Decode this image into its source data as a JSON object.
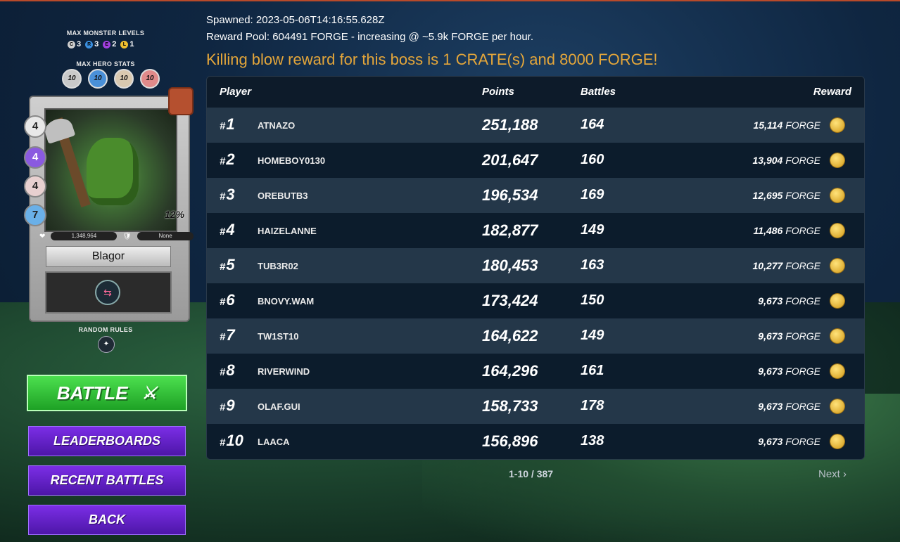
{
  "header": {
    "spawned": "Spawned: 2023-05-06T14:16:55.628Z",
    "reward_pool": "Reward Pool: 604491 FORGE - increasing @ ~5.9k FORGE per hour.",
    "killing_blow": "Killing blow reward for this boss is 1 CRATE(s) and 8000 FORGE!"
  },
  "left": {
    "max_monster_levels_label": "MAX MONSTER LEVELS",
    "monster_levels": [
      {
        "letter": "C",
        "value": "3",
        "color": "#cfcfcf"
      },
      {
        "letter": "R",
        "value": "3",
        "color": "#3a8fe0"
      },
      {
        "letter": "E",
        "value": "2",
        "color": "#a040e0"
      },
      {
        "letter": "L",
        "value": "1",
        "color": "#f0c030"
      }
    ],
    "max_hero_stats_label": "MAX HERO STATS",
    "hero_stats": [
      "10",
      "10",
      "10",
      "10"
    ],
    "card": {
      "stats": [
        "4",
        "4",
        "4",
        "7"
      ],
      "crit_pct": "12%",
      "health": "1,348,964",
      "armor": "None",
      "name": "Blagor"
    },
    "random_rules_label": "RANDOM RULES",
    "battle_label": "BATTLE",
    "leaderboards_label": "LEADERBOARDS",
    "recent_battles_label": "RECENT BATTLES",
    "back_label": "BACK"
  },
  "table": {
    "headers": {
      "player": "Player",
      "points": "Points",
      "battles": "Battles",
      "reward": "Reward"
    },
    "rows": [
      {
        "rank": "1",
        "player": "ATNAZO",
        "points": "251,188",
        "battles": "164",
        "reward": "15,114",
        "unit": "FORGE"
      },
      {
        "rank": "2",
        "player": "HOMEBOY0130",
        "points": "201,647",
        "battles": "160",
        "reward": "13,904",
        "unit": "FORGE"
      },
      {
        "rank": "3",
        "player": "OREBUTB3",
        "points": "196,534",
        "battles": "169",
        "reward": "12,695",
        "unit": "FORGE"
      },
      {
        "rank": "4",
        "player": "HAIZELANNE",
        "points": "182,877",
        "battles": "149",
        "reward": "11,486",
        "unit": "FORGE"
      },
      {
        "rank": "5",
        "player": "TUB3R02",
        "points": "180,453",
        "battles": "163",
        "reward": "10,277",
        "unit": "FORGE"
      },
      {
        "rank": "6",
        "player": "BNOVY.WAM",
        "points": "173,424",
        "battles": "150",
        "reward": "9,673",
        "unit": "FORGE"
      },
      {
        "rank": "7",
        "player": "TW1ST10",
        "points": "164,622",
        "battles": "149",
        "reward": "9,673",
        "unit": "FORGE"
      },
      {
        "rank": "8",
        "player": "RIVERWIND",
        "points": "164,296",
        "battles": "161",
        "reward": "9,673",
        "unit": "FORGE"
      },
      {
        "rank": "9",
        "player": "OLAF.GUI",
        "points": "158,733",
        "battles": "178",
        "reward": "9,673",
        "unit": "FORGE"
      },
      {
        "rank": "10",
        "player": "LAACA",
        "points": "156,896",
        "battles": "138",
        "reward": "9,673",
        "unit": "FORGE"
      }
    ]
  },
  "pagination": {
    "range": "1-10 / 387",
    "next_label": "Next"
  }
}
